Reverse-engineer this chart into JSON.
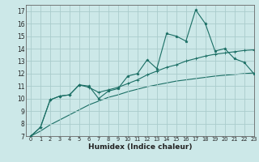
{
  "title": "",
  "xlabel": "Humidex (Indice chaleur)",
  "background_color": "#cce8e8",
  "grid_color": "#aacccc",
  "line_color": "#1a6e64",
  "xlim": [
    -0.5,
    23
  ],
  "ylim": [
    7,
    17.5
  ],
  "xticks": [
    0,
    1,
    2,
    3,
    4,
    5,
    6,
    7,
    8,
    9,
    10,
    11,
    12,
    13,
    14,
    15,
    16,
    17,
    18,
    19,
    20,
    21,
    22,
    23
  ],
  "yticks": [
    7,
    8,
    9,
    10,
    11,
    12,
    13,
    14,
    15,
    16,
    17
  ],
  "line1_x": [
    0,
    1,
    2,
    3,
    4,
    5,
    6,
    7,
    8,
    9,
    10,
    11,
    12,
    13,
    14,
    15,
    16,
    17,
    18,
    19,
    20,
    21,
    22,
    23
  ],
  "line1_y": [
    7.0,
    7.7,
    9.9,
    10.2,
    10.3,
    11.1,
    11.0,
    10.0,
    10.6,
    10.8,
    11.8,
    12.0,
    13.1,
    12.4,
    15.2,
    15.0,
    14.6,
    17.1,
    16.0,
    13.8,
    14.0,
    13.2,
    12.9,
    12.0
  ],
  "line2_x": [
    0,
    1,
    2,
    3,
    4,
    5,
    6,
    7,
    8,
    9,
    10,
    11,
    12,
    13,
    14,
    15,
    16,
    17,
    18,
    19,
    20,
    21,
    22,
    23
  ],
  "line2_y": [
    7.0,
    7.7,
    9.9,
    10.2,
    10.3,
    11.1,
    10.9,
    10.5,
    10.7,
    10.9,
    11.2,
    11.5,
    11.9,
    12.2,
    12.5,
    12.7,
    13.0,
    13.2,
    13.4,
    13.55,
    13.65,
    13.75,
    13.85,
    13.9
  ],
  "line3_x": [
    0,
    1,
    2,
    3,
    4,
    5,
    6,
    7,
    8,
    9,
    10,
    11,
    12,
    13,
    14,
    15,
    16,
    17,
    18,
    19,
    20,
    21,
    22,
    23
  ],
  "line3_y": [
    7.0,
    7.4,
    7.9,
    8.3,
    8.7,
    9.1,
    9.5,
    9.8,
    10.1,
    10.3,
    10.55,
    10.75,
    10.95,
    11.1,
    11.25,
    11.4,
    11.5,
    11.6,
    11.7,
    11.8,
    11.87,
    11.93,
    12.0,
    12.05
  ]
}
